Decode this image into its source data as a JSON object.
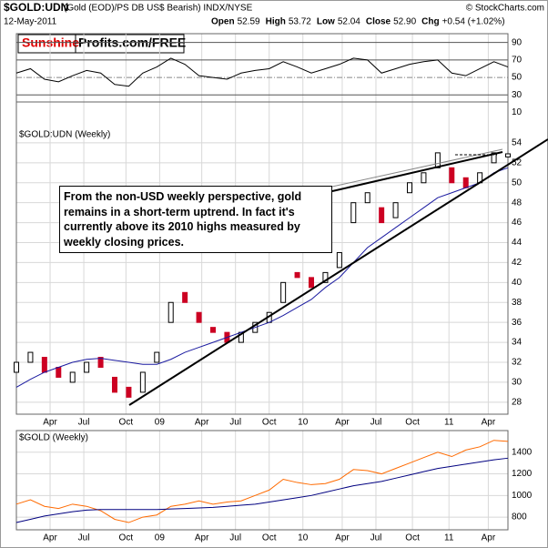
{
  "header": {
    "title": "$GOLD:UDN",
    "subtitle": "(Gold (EOD)/PS DB US$ Bearish) INDX/NYSE",
    "source": "© StockCharts.com",
    "date": "12-May-2011",
    "quote": [
      {
        "label": "Open",
        "value": "52.59"
      },
      {
        "label": "High",
        "value": "53.72"
      },
      {
        "label": "Low",
        "value": "52.04"
      },
      {
        "label": "Close",
        "value": "52.90"
      },
      {
        "label": "Chg",
        "value": "+0.54 (+1.02%)"
      }
    ],
    "logo": {
      "red": "Sunshine",
      "black": "Profits.com/FREE"
    },
    "annotation": [
      "From the non-USD weekly perspective, gold",
      "remains in a short-term uptrend. In fact it's",
      "currently above its 2010 highs measured by",
      "weekly closing prices."
    ]
  },
  "chart_data": [
    {
      "type": "line",
      "ylim": [
        22,
        100
      ],
      "yticks": [
        90,
        70,
        50,
        30,
        10
      ],
      "xlim": [
        0,
        175
      ],
      "x": [
        0,
        5,
        10,
        15,
        20,
        25,
        30,
        35,
        40,
        45,
        50,
        55,
        60,
        65,
        70,
        75,
        80,
        85,
        90,
        95,
        100,
        105,
        110,
        115,
        120,
        125,
        130,
        135,
        140,
        145,
        150,
        155,
        160,
        165,
        170,
        175
      ],
      "series": [
        {
          "color": "#000000",
          "values": [
            55,
            60,
            48,
            45,
            52,
            58,
            55,
            42,
            40,
            55,
            62,
            72,
            65,
            52,
            50,
            48,
            55,
            58,
            60,
            68,
            62,
            55,
            60,
            65,
            72,
            70,
            55,
            60,
            65,
            68,
            70,
            55,
            52,
            60,
            68,
            62
          ]
        }
      ]
    },
    {
      "type": "candlestick",
      "label": "$GOLD:UDN (Weekly)",
      "ylim": [
        26.8,
        58.1
      ],
      "yticks": [
        54,
        52,
        50,
        48,
        46,
        44,
        42,
        40,
        38,
        36,
        34,
        32,
        30,
        28
      ],
      "xlim": [
        0,
        175
      ],
      "xticks": [
        {
          "value": 12,
          "label": "Apr"
        },
        {
          "value": 24,
          "label": "Jul"
        },
        {
          "value": 39,
          "label": "Oct"
        },
        {
          "value": 51,
          "label": "09"
        },
        {
          "value": 66,
          "label": "Apr"
        },
        {
          "value": 78,
          "label": "Jul"
        },
        {
          "value": 90,
          "label": "Oct"
        },
        {
          "value": 102,
          "label": "10"
        },
        {
          "value": 116,
          "label": "Apr"
        },
        {
          "value": 128,
          "label": "Jul"
        },
        {
          "value": 141,
          "label": "Oct"
        },
        {
          "value": 154,
          "label": "11"
        },
        {
          "value": 168,
          "label": "Apr"
        }
      ],
      "x": [
        0,
        5,
        10,
        15,
        20,
        25,
        30,
        35,
        40,
        45,
        50,
        55,
        60,
        65,
        70,
        75,
        80,
        85,
        90,
        95,
        100,
        105,
        110,
        115,
        120,
        125,
        130,
        135,
        140,
        145,
        150,
        155,
        160,
        165,
        170,
        175
      ],
      "open": [
        31,
        32,
        32.5,
        31.5,
        30,
        31,
        32.5,
        30.5,
        29.5,
        29,
        32,
        36,
        39,
        37,
        35.5,
        35,
        34,
        35,
        36,
        38,
        41,
        40.5,
        40,
        41.5,
        46,
        48,
        47.5,
        46.5,
        49,
        50,
        51.5,
        51.5,
        50.5,
        50,
        52,
        52.59
      ],
      "close": [
        32,
        33,
        31,
        30.5,
        31,
        32,
        31.5,
        29,
        28.5,
        31,
        33,
        38,
        38,
        36,
        35,
        34,
        35,
        36,
        37,
        40,
        40.5,
        39.5,
        41,
        43,
        48,
        49,
        46,
        48,
        50,
        51,
        53,
        50,
        49.5,
        51,
        53,
        52.9
      ],
      "up_color": "#000000",
      "down_color": "#cc0022",
      "overlays": [
        {
          "color": "#1a1aa0",
          "values": [
            29.5,
            30.3,
            31,
            31.5,
            32,
            32.3,
            32.4,
            32.2,
            32,
            31.8,
            31.8,
            32.3,
            33,
            33.5,
            34,
            34.5,
            35,
            35.5,
            36,
            36.7,
            37.5,
            38.3,
            39.5,
            40.5,
            42,
            43.5,
            44.5,
            45.5,
            46.5,
            47.5,
            48.5,
            49,
            49.5,
            50,
            51,
            51.5
          ]
        }
      ]
    },
    {
      "type": "line",
      "label": "$GOLD (Weekly)",
      "ylim": [
        683,
        1600
      ],
      "yticks": [
        1400,
        1200,
        1000,
        800
      ],
      "xlim": [
        0,
        175
      ],
      "xticks": [
        {
          "value": 12,
          "label": "Apr"
        },
        {
          "value": 24,
          "label": "Jul"
        },
        {
          "value": 39,
          "label": "Oct"
        },
        {
          "value": 51,
          "label": "09"
        },
        {
          "value": 66,
          "label": "Apr"
        },
        {
          "value": 78,
          "label": "Jul"
        },
        {
          "value": 90,
          "label": "Oct"
        },
        {
          "value": 102,
          "label": "10"
        },
        {
          "value": 116,
          "label": "Apr"
        },
        {
          "value": 128,
          "label": "Jul"
        },
        {
          "value": 141,
          "label": "Oct"
        },
        {
          "value": 154,
          "label": "11"
        },
        {
          "value": 168,
          "label": "Apr"
        }
      ],
      "x": [
        0,
        5,
        10,
        15,
        20,
        25,
        30,
        35,
        40,
        45,
        50,
        55,
        60,
        65,
        70,
        75,
        80,
        85,
        90,
        95,
        100,
        105,
        110,
        115,
        120,
        125,
        130,
        135,
        140,
        145,
        150,
        155,
        160,
        165,
        170,
        175
      ],
      "series": [
        {
          "color": "#ff6a00",
          "values": [
            920,
            960,
            900,
            880,
            920,
            900,
            860,
            780,
            750,
            800,
            820,
            900,
            920,
            950,
            920,
            940,
            950,
            1000,
            1050,
            1150,
            1120,
            1100,
            1110,
            1150,
            1240,
            1230,
            1200,
            1250,
            1300,
            1350,
            1400,
            1360,
            1420,
            1450,
            1510,
            1500
          ]
        },
        {
          "color": "#000080",
          "values": [
            750,
            780,
            810,
            830,
            850,
            865,
            870,
            870,
            870,
            870,
            870,
            875,
            880,
            885,
            890,
            900,
            910,
            920,
            940,
            960,
            980,
            1000,
            1030,
            1060,
            1090,
            1110,
            1130,
            1160,
            1190,
            1220,
            1250,
            1270,
            1290,
            1310,
            1330,
            1345
          ]
        }
      ]
    }
  ]
}
